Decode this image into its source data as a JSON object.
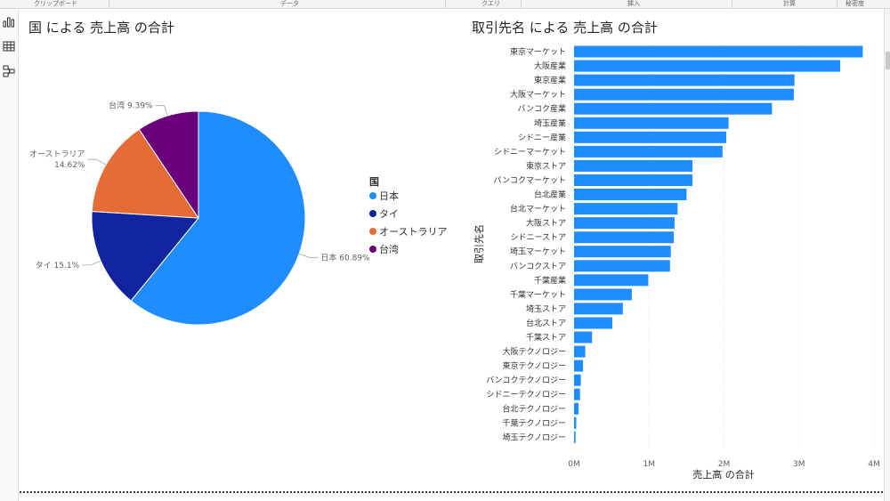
{
  "ribbon": {
    "groups": [
      "クリップボード",
      "データ",
      "クエリ",
      "挿入",
      "計算",
      "秘密度"
    ]
  },
  "sidebar": {
    "icons": [
      "report-view-icon",
      "data-view-icon",
      "model-view-icon"
    ]
  },
  "colors": {
    "blue": "#1f8cff",
    "navy": "#12239e",
    "orange": "#e66c37",
    "purple": "#6b007b",
    "bar": "#1f8cff"
  },
  "chart_data": [
    {
      "type": "pie",
      "title": "国 による 売上高 の合計",
      "legend_title": "国",
      "legend_position": "right",
      "slices": [
        {
          "label": "日本",
          "value": 60.89,
          "data_label": "日本 60.89%",
          "color": "#1f8cff"
        },
        {
          "label": "タイ",
          "value": 15.1,
          "data_label": "タイ 15.1%",
          "color": "#12239e"
        },
        {
          "label": "オーストラリア",
          "value": 14.62,
          "data_label": "オーストラリア\n14.62%",
          "color": "#e66c37"
        },
        {
          "label": "台湾",
          "value": 9.39,
          "data_label": "台湾 9.39%",
          "color": "#6b007b"
        }
      ]
    },
    {
      "type": "bar",
      "orientation": "horizontal",
      "title": "取引先名 による 売上高 の合計",
      "xlabel": "売上高 の合計",
      "ylabel": "取引先名",
      "xlim": [
        0,
        4000000
      ],
      "xticks": [
        {
          "value": 0,
          "label": "0M"
        },
        {
          "value": 1000000,
          "label": "1M"
        },
        {
          "value": 2000000,
          "label": "2M"
        },
        {
          "value": 3000000,
          "label": "3M"
        },
        {
          "value": 4000000,
          "label": "4M"
        }
      ],
      "grid": true,
      "categories": [
        "東京マーケット",
        "大阪産業",
        "東京産業",
        "大阪マーケット",
        "バンコク産業",
        "埼玉産業",
        "シドニー産業",
        "シドニーマーケット",
        "東京ストア",
        "バンコクマーケット",
        "台北産業",
        "台北マーケット",
        "大阪ストア",
        "シドニーストア",
        "埼玉マーケット",
        "バンコクストア",
        "千葉産業",
        "千葉マーケット",
        "埼玉ストア",
        "台北ストア",
        "千葉ストア",
        "大阪テクノロジー",
        "東京テクノロジー",
        "バンコクテクノロジー",
        "シドニーテクノロジー",
        "台北テクノロジー",
        "千葉テクノロジー",
        "埼玉テクノロジー"
      ],
      "values": [
        3850000,
        3550000,
        2940000,
        2930000,
        2640000,
        2060000,
        2030000,
        1980000,
        1580000,
        1580000,
        1500000,
        1380000,
        1340000,
        1330000,
        1290000,
        1280000,
        990000,
        770000,
        650000,
        510000,
        240000,
        150000,
        120000,
        90000,
        80000,
        60000,
        30000,
        20000
      ]
    }
  ]
}
